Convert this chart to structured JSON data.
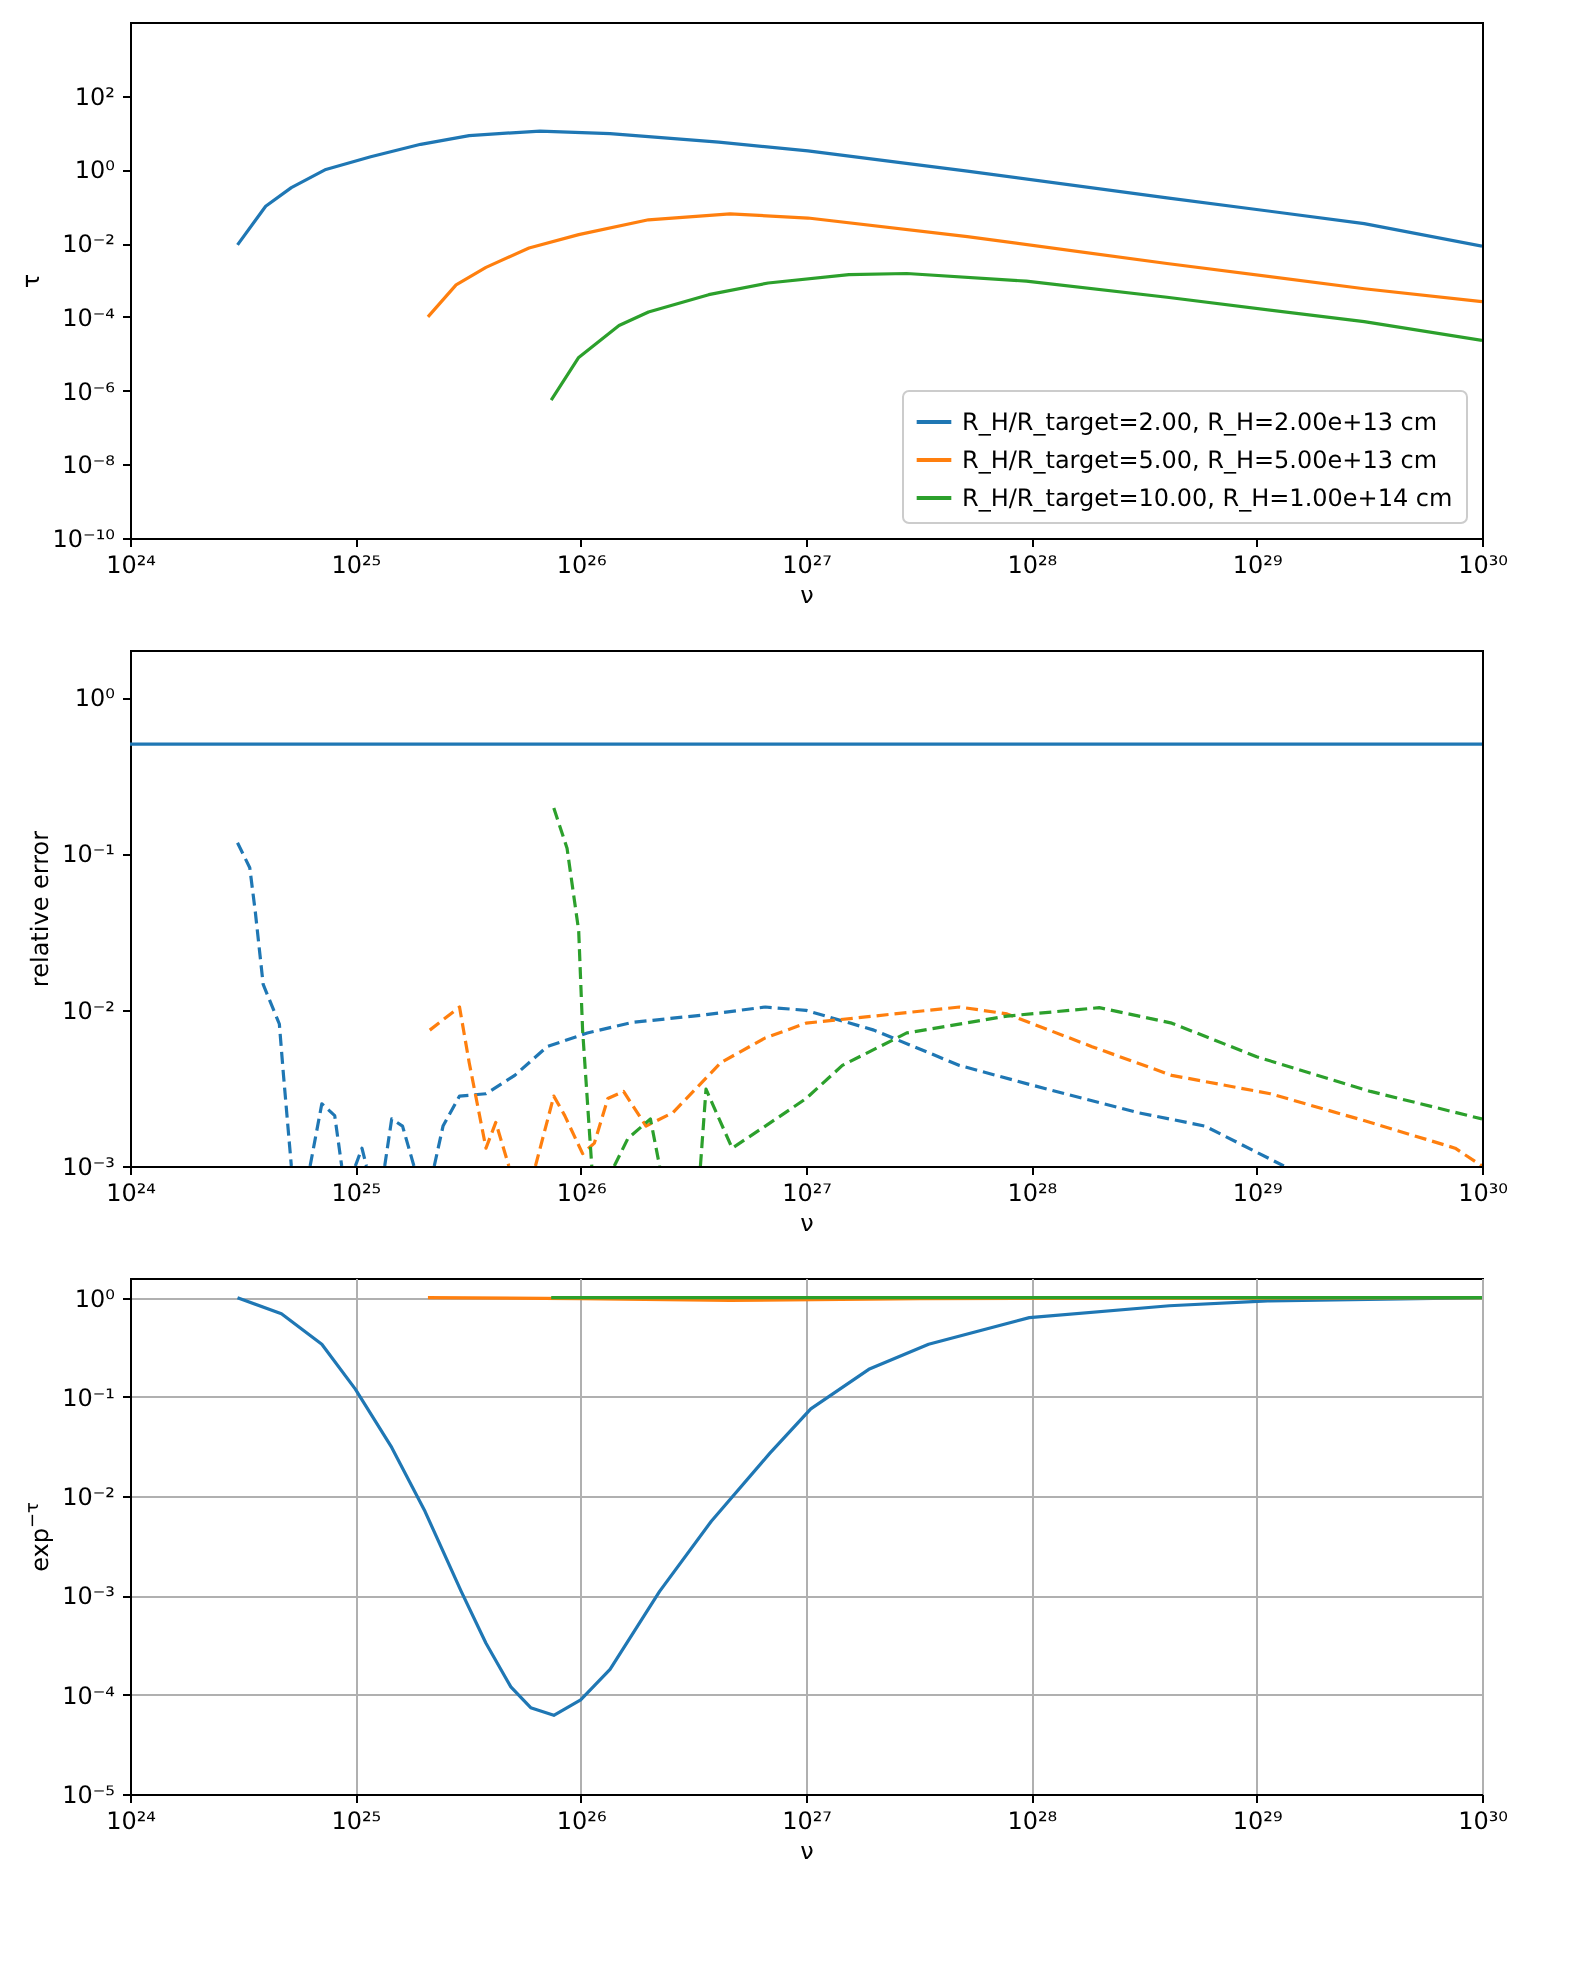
{
  "chart_data": [
    {
      "type": "line",
      "xlabel": "ν",
      "ylabel": "τ",
      "log": "xy",
      "legend": "bottom right",
      "xlim": [
        1e+24,
        1e+30
      ],
      "xticks": [
        {
          "value": 1e+24,
          "label": "10²⁴"
        },
        {
          "value": 1e+25,
          "label": "10²⁵"
        },
        {
          "value": 1e+26,
          "label": "10²⁶"
        },
        {
          "value": 1e+27,
          "label": "10²⁷"
        },
        {
          "value": 1e+28,
          "label": "10²⁸"
        },
        {
          "value": 1e+29,
          "label": "10²⁹"
        },
        {
          "value": 1e+30,
          "label": "10³⁰"
        }
      ],
      "ylim": [
        1e-10,
        10000.0
      ],
      "yticks": [
        {
          "value": 1e-10,
          "label": "10⁻¹⁰"
        },
        {
          "value": 1e-08,
          "label": "10⁻⁸"
        },
        {
          "value": 1e-06,
          "label": "10⁻⁶"
        },
        {
          "value": 0.0001,
          "label": "10⁻⁴"
        },
        {
          "value": 0.01,
          "label": "10⁻²"
        },
        {
          "value": 1,
          "label": "10⁰"
        },
        {
          "value": 100,
          "label": "10²"
        }
      ],
      "series": [
        {
          "name": "R_H/R_target=2.00, R_H=2.00e+13 cm",
          "color": "#1f77b4",
          "x": [
            3e+24,
            4e+24,
            5.2e+24,
            7.4e+24,
            1.17e+25,
            1.95e+25,
            3.2e+25,
            6.6e+25,
            1.35e+26,
            4.1e+26,
            1.02e+27,
            5.2e+27,
            4e+28,
            3e+29,
            1e+30
          ],
          "values": [
            0.009,
            0.1,
            0.32,
            1.0,
            2.2,
            4.8,
            8.3,
            11,
            9.4,
            5.5,
            3.2,
            0.9,
            0.17,
            0.034,
            0.0083
          ]
        },
        {
          "name": "R_H/R_target=5.00, R_H=5.00e+13 cm",
          "color": "#ff7f0e",
          "x": [
            2.1e+25,
            2.8e+25,
            3.8e+25,
            5.9e+25,
            9.8e+25,
            2e+26,
            4.6e+26,
            1.02e+27,
            5.2e+27,
            4e+28,
            3e+29,
            1e+30
          ],
          "values": [
            0.0001,
            0.00074,
            0.0022,
            0.0074,
            0.017,
            0.043,
            0.062,
            0.048,
            0.015,
            0.0028,
            0.00058,
            0.00026
          ]
        },
        {
          "name": "R_H/R_target=10.00, R_H=1.00e+14 cm",
          "color": "#2ca02c",
          "x": [
            7.4e+25,
            9.8e+25,
            1.48e+26,
            2e+26,
            3.7e+26,
            6.8e+26,
            1.55e+27,
            2.8e+27,
            9.5e+27,
            4e+28,
            3e+29,
            1e+30
          ],
          "values": [
            5.5e-07,
            7.9e-06,
            5.8e-05,
            0.000135,
            0.0004,
            0.00083,
            0.0014,
            0.0015,
            0.00093,
            0.00034,
            7.4e-05,
            2.3e-05
          ]
        }
      ]
    },
    {
      "type": "line",
      "xlabel": "ν",
      "ylabel": "relative error",
      "log": "xy",
      "line_style": "dashed",
      "xlim": [
        1e+24,
        1e+30
      ],
      "xticks": [
        {
          "value": 1e+24,
          "label": "10²⁴"
        },
        {
          "value": 1e+25,
          "label": "10²⁵"
        },
        {
          "value": 1e+26,
          "label": "10²⁶"
        },
        {
          "value": 1e+27,
          "label": "10²⁷"
        },
        {
          "value": 1e+28,
          "label": "10²⁸"
        },
        {
          "value": 1e+29,
          "label": "10²⁹"
        },
        {
          "value": 1e+30,
          "label": "10³⁰"
        }
      ],
      "ylim": [
        0.001,
        2
      ],
      "yticks": [
        {
          "value": 0.001,
          "label": "10⁻³"
        },
        {
          "value": 0.01,
          "label": "10⁻²"
        },
        {
          "value": 0.1,
          "label": "10⁻¹"
        },
        {
          "value": 1,
          "label": "10⁰"
        }
      ],
      "ref_lines": [
        {
          "axis": "y",
          "value": 0.5,
          "color": "#1f77b4"
        }
      ],
      "series": [
        {
          "color": "#1f77b4",
          "x": [
            3e+24,
            3.4e+24,
            3.6e+24,
            3.9e+24,
            4.6e+24,
            4.8e+24,
            5.2e+24,
            5.7e+24,
            6.3e+24,
            7.1e+24,
            8.1e+24,
            8.7e+24,
            9.3e+24,
            1e+25,
            1.07e+25,
            1.12e+25,
            1.25e+25,
            1.35e+25,
            1.45e+25,
            1.62e+25,
            1.82e+25,
            2e+25,
            2.24e+25,
            2.45e+25,
            2.9e+25,
            3.8e+25,
            5.1e+25,
            7.1e+25,
            1.07e+26,
            1.7e+26,
            3.4e+26,
            6.6e+26,
            1e+27,
            2e+27,
            4.8e+27,
            1e+28,
            2.95e+28,
            5.9e+28,
            1.32e+29
          ],
          "values": [
            0.117,
            0.081,
            0.042,
            0.0145,
            0.0081,
            0.0038,
            0.001,
            null,
            0.001,
            0.0025,
            0.0021,
            0.001,
            null,
            0.001,
            0.0013,
            0.001,
            null,
            0.001,
            0.002,
            0.0018,
            0.001,
            null,
            0.001,
            0.0018,
            0.0028,
            0.0029,
            0.0038,
            0.0058,
            0.0071,
            0.0083,
            0.0092,
            0.0104,
            0.0099,
            0.0074,
            0.0044,
            0.0033,
            0.0022,
            0.0018,
            0.001
          ]
        },
        {
          "color": "#ff7f0e",
          "x": [
            2.14e+25,
            2.9e+25,
            3.2e+25,
            3.8e+25,
            4.2e+25,
            4.8e+25,
            5.5e+25,
            6.3e+25,
            7.6e+25,
            8.5e+25,
            1.02e+26,
            1.15e+26,
            1.32e+26,
            1.55e+26,
            1.95e+26,
            2.57e+26,
            4.2e+26,
            6.6e+26,
            1e+27,
            2e+27,
            4.8e+27,
            7.8e+27,
            1.86e+28,
            4.2e+28,
            1.15e+29,
            3.2e+29,
            7.6e+29,
            1e+30
          ],
          "values": [
            0.0074,
            0.0104,
            0.0046,
            0.0013,
            0.0019,
            0.001,
            null,
            0.001,
            0.0028,
            0.0021,
            0.0012,
            0.0014,
            0.0027,
            0.003,
            0.0018,
            0.0022,
            0.0046,
            0.0066,
            0.0082,
            0.0091,
            0.0104,
            0.0094,
            0.0058,
            0.0038,
            0.0029,
            0.0019,
            0.0013,
            0.001
          ]
        },
        {
          "color": "#2ca02c",
          "x": [
            7.6e+25,
            8.7e+25,
            9.8e+25,
            1.02e+26,
            1.12e+26,
            1.25e+26,
            1.41e+26,
            1.62e+26,
            2.04e+26,
            2.24e+26,
            2.8e+26,
            3.4e+26,
            3.6e+26,
            4.7e+26,
            6.6e+26,
            1e+27,
            1.45e+27,
            2.8e+27,
            7.8e+27,
            2e+28,
            4.2e+28,
            1e+29,
            3.2e+29,
            1e+30
          ],
          "values": [
            0.195,
            0.108,
            0.032,
            0.0074,
            0.001,
            null,
            0.001,
            0.0015,
            0.002,
            0.001,
            null,
            0.001,
            0.0031,
            0.0013,
            0.0018,
            0.0027,
            0.0044,
            0.0071,
            0.0091,
            0.0103,
            0.0082,
            0.005,
            0.003,
            0.002
          ]
        }
      ]
    },
    {
      "type": "line",
      "xlabel": "ν",
      "ylabel": "exp$^{−τ}$",
      "log": "xy",
      "grid": true,
      "xlim": [
        1e+24,
        1e+30
      ],
      "xticks": [
        {
          "value": 1e+24,
          "label": "10²⁴"
        },
        {
          "value": 1e+25,
          "label": "10²⁵"
        },
        {
          "value": 1e+26,
          "label": "10²⁶"
        },
        {
          "value": 1e+27,
          "label": "10²⁷"
        },
        {
          "value": 1e+28,
          "label": "10²⁸"
        },
        {
          "value": 1e+29,
          "label": "10²⁹"
        },
        {
          "value": 1e+30,
          "label": "10³⁰"
        }
      ],
      "ylim": [
        1e-05,
        1.58
      ],
      "yticks": [
        {
          "value": 1e-05,
          "label": "10⁻⁵"
        },
        {
          "value": 0.0001,
          "label": "10⁻⁴"
        },
        {
          "value": 0.001,
          "label": "10⁻³"
        },
        {
          "value": 0.01,
          "label": "10⁻²"
        },
        {
          "value": 0.1,
          "label": "10⁻¹"
        },
        {
          "value": 1,
          "label": "10⁰"
        }
      ],
      "series": [
        {
          "color": "#1f77b4",
          "x": [
            3e+24,
            4.7e+24,
            7.1e+24,
            1e+25,
            1.45e+25,
            2.04e+25,
            2.95e+25,
            3.8e+25,
            4.9e+25,
            6e+25,
            7.6e+25,
            1e+26,
            1.35e+26,
            2.24e+26,
            3.8e+26,
            6.9e+26,
            1.05e+27,
            1.9e+27,
            3.5e+27,
            9.8e+27,
            4.1e+28,
            1.12e+29,
            1e+30
          ],
          "values": [
            1.0,
            0.69,
            0.34,
            0.12,
            0.031,
            0.007,
            0.0011,
            0.00033,
            0.00012,
            7.4e-05,
            6.2e-05,
            8.9e-05,
            0.00018,
            0.0011,
            0.0056,
            0.027,
            0.076,
            0.19,
            0.34,
            0.63,
            0.83,
            0.93,
            1.0
          ]
        },
        {
          "color": "#ff7f0e",
          "x": [
            2.1e+25,
            1e+26,
            4.6e+26,
            3.2e+27,
            1e+30
          ],
          "values": [
            1.0,
            0.98,
            0.94,
            0.98,
            1.0
          ]
        },
        {
          "color": "#2ca02c",
          "x": [
            7.4e+25,
            2.8e+27,
            1e+30
          ],
          "values": [
            1.0,
            1.0,
            1.0
          ]
        }
      ]
    }
  ]
}
